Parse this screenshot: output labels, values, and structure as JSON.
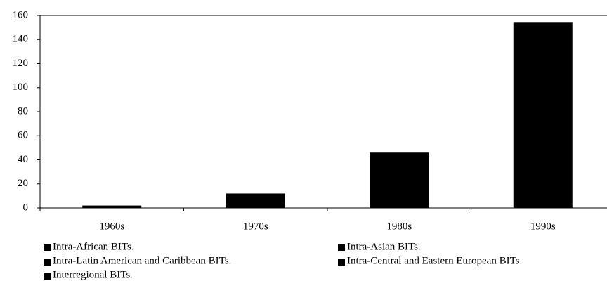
{
  "chart_data": {
    "type": "bar",
    "categories": [
      "1960s",
      "1970s",
      "1980s",
      "1990s"
    ],
    "values": [
      2,
      12,
      46,
      154
    ],
    "color": "#000000",
    "ylim": [
      0,
      160
    ],
    "yticks": [
      0,
      20,
      40,
      60,
      80,
      100,
      120,
      140,
      160
    ],
    "legend": [
      "Intra-African BITs.",
      "Intra-Asian BITs.",
      "Intra-Latin American and Caribbean BITs.",
      "Intra-Central and Eastern European BITs.",
      "Interregional BITs."
    ]
  }
}
